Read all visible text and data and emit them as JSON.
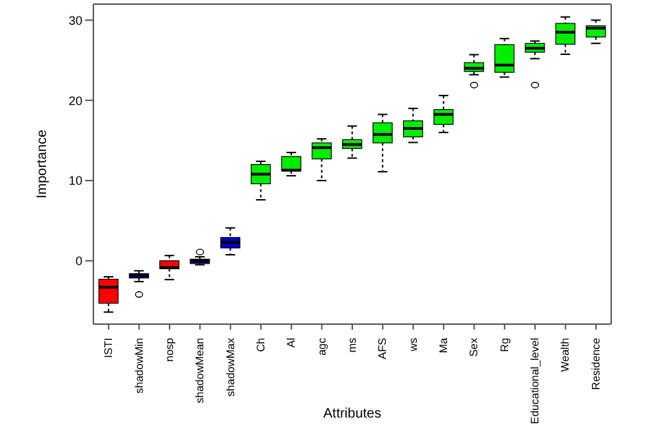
{
  "chart_data": {
    "type": "box",
    "xlabel": "Attributes",
    "ylabel": "Importance",
    "categories": [
      "ISTI",
      "shadowMin",
      "nosp",
      "shadowMean",
      "shadowMax",
      "Ch",
      "Al",
      "agc",
      "ms",
      "AFS",
      "ws",
      "Ma",
      "Sex",
      "Rg",
      "Educational_level",
      "Wealth",
      "Residence"
    ],
    "colors": [
      "#ff0000",
      "#0000cc",
      "#ff0000",
      "#0000cc",
      "#0000cc",
      "#00ee00",
      "#00ee00",
      "#00ee00",
      "#00ee00",
      "#00ee00",
      "#00ee00",
      "#00ee00",
      "#00ee00",
      "#00ee00",
      "#00ee00",
      "#00ee00",
      "#00ee00"
    ],
    "boxes": [
      {
        "low": -6.4,
        "q1": -5.3,
        "median": -3.3,
        "q3": -2.3,
        "high": -2.0
      },
      {
        "low": -2.6,
        "q1": -2.15,
        "median": -1.85,
        "q3": -1.6,
        "high": -1.25,
        "outliers": [
          -4.2
        ]
      },
      {
        "low": -2.35,
        "q1": -1.0,
        "median": -0.85,
        "q3": 0.0,
        "high": 0.65
      },
      {
        "low": -0.5,
        "q1": -0.35,
        "median": -0.05,
        "q3": 0.2,
        "high": 0.5,
        "outliers": [
          1.1
        ]
      },
      {
        "low": 0.75,
        "q1": 1.6,
        "median": 2.3,
        "q3": 2.9,
        "high": 4.1
      },
      {
        "low": 7.6,
        "q1": 9.6,
        "median": 10.8,
        "q3": 12.0,
        "high": 12.4
      },
      {
        "low": 10.6,
        "q1": 11.2,
        "median": 11.3,
        "q3": 13.0,
        "high": 13.5
      },
      {
        "low": 10.0,
        "q1": 12.7,
        "median": 14.1,
        "q3": 14.7,
        "high": 15.2
      },
      {
        "low": 12.8,
        "q1": 14.0,
        "median": 14.5,
        "q3": 15.1,
        "high": 16.8
      },
      {
        "low": 11.1,
        "q1": 14.7,
        "median": 15.75,
        "q3": 17.2,
        "high": 18.25
      },
      {
        "low": 14.75,
        "q1": 15.45,
        "median": 16.5,
        "q3": 17.45,
        "high": 19.0
      },
      {
        "low": 16.0,
        "q1": 17.0,
        "median": 18.25,
        "q3": 18.85,
        "high": 20.6
      },
      {
        "low": 23.2,
        "q1": 23.6,
        "median": 24.0,
        "q3": 24.7,
        "high": 25.7,
        "outliers": [
          21.9
        ]
      },
      {
        "low": 22.9,
        "q1": 23.5,
        "median": 24.4,
        "q3": 26.95,
        "high": 27.7
      },
      {
        "low": 25.2,
        "q1": 26.0,
        "median": 26.5,
        "q3": 27.1,
        "high": 27.4,
        "outliers": [
          21.9
        ]
      },
      {
        "low": 25.75,
        "q1": 27.0,
        "median": 28.5,
        "q3": 29.6,
        "high": 30.4
      },
      {
        "low": 27.1,
        "q1": 27.9,
        "median": 29.0,
        "q3": 29.3,
        "high": 30.0
      }
    ],
    "ylim": [
      -7.9,
      32
    ],
    "yticks": [
      0,
      10,
      20,
      30
    ],
    "grid": false
  }
}
